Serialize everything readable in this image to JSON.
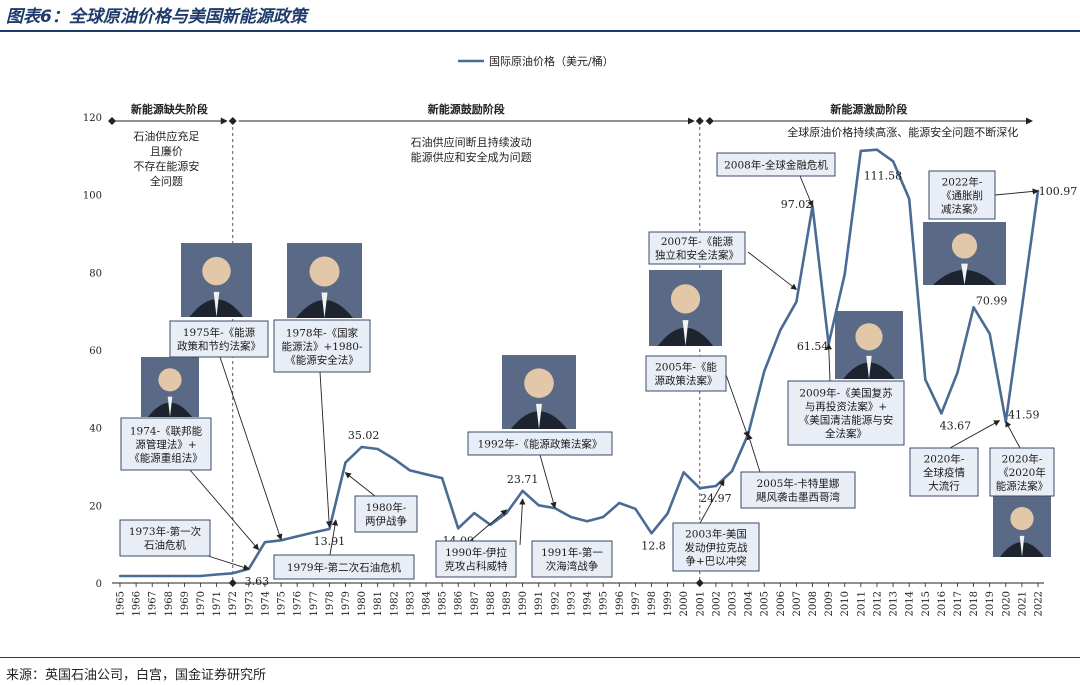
{
  "figure_title": "图表6：全球原油价格与美国新能源政策",
  "source": "来源：英国石油公司，白宫，国金证券研究所",
  "chart_data": {
    "type": "line",
    "series": [
      {
        "name": "国际原油价格（美元/桶）",
        "color": "#4a6b94",
        "x": [
          1965,
          1966,
          1967,
          1968,
          1969,
          1970,
          1971,
          1972,
          1973,
          1974,
          1975,
          1976,
          1977,
          1978,
          1979,
          1980,
          1981,
          1982,
          1983,
          1984,
          1985,
          1986,
          1987,
          1988,
          1989,
          1990,
          1991,
          1992,
          1993,
          1994,
          1995,
          1996,
          1997,
          1998,
          1999,
          2000,
          2001,
          2002,
          2003,
          2004,
          2005,
          2006,
          2007,
          2008,
          2009,
          2010,
          2011,
          2012,
          2013,
          2014,
          2015,
          2016,
          2017,
          2018,
          2019,
          2020,
          2021,
          2022
        ],
        "values": [
          1.8,
          1.8,
          1.8,
          1.8,
          1.8,
          1.8,
          2.2,
          2.5,
          3.63,
          10.5,
          11.0,
          12.0,
          13.0,
          13.91,
          31.0,
          35.02,
          34.5,
          32.0,
          29.0,
          28.0,
          27.0,
          14.09,
          18.0,
          15.0,
          18.0,
          23.71,
          20.0,
          19.3,
          17.0,
          15.9,
          17.0,
          20.6,
          19.1,
          12.8,
          17.9,
          28.5,
          24.4,
          24.97,
          28.8,
          38.3,
          54.5,
          65.1,
          72.4,
          97.02,
          61.54,
          79.5,
          111.26,
          111.58,
          108.6,
          98.9,
          52.4,
          43.67,
          54.2,
          70.99,
          64.2,
          41.59,
          70.9,
          100.97
        ]
      }
    ],
    "xlim": [
      1965,
      2022
    ],
    "ylim": [
      0,
      120
    ],
    "yticks": [
      0,
      20,
      40,
      60,
      80,
      100,
      120
    ],
    "legend": "top-center",
    "grid": false,
    "data_labels": [
      {
        "year": 1973,
        "text": "3.63"
      },
      {
        "year": 1978,
        "text": "13.91"
      },
      {
        "year": 1980,
        "text": "35.02"
      },
      {
        "year": 1986,
        "text": "14.09"
      },
      {
        "year": 1990,
        "text": "23.71"
      },
      {
        "year": 1998,
        "text": "12.8"
      },
      {
        "year": 2002,
        "text": "24.97"
      },
      {
        "year": 2008,
        "text": "97.02"
      },
      {
        "year": 2009,
        "text": "61.54"
      },
      {
        "year": 2012,
        "text": "111.58"
      },
      {
        "year": 2016,
        "text": "43.67"
      },
      {
        "year": 2018,
        "text": "70.99"
      },
      {
        "year": 2020,
        "text": "41.59"
      },
      {
        "year": 2022,
        "text": "100.97"
      }
    ],
    "phases": [
      {
        "label": "新能源缺失阶段",
        "from": 1965,
        "to": 1972,
        "note": [
          "石油供应充足",
          "且廉价",
          "不存在能源安",
          "全问题"
        ]
      },
      {
        "label": "新能源鼓励阶段",
        "from": 1972,
        "to": 2001,
        "note": [
          "石油供应间断且持续波动",
          "能源供应和安全成为问题"
        ]
      },
      {
        "label": "新能源激励阶段",
        "from": 2001,
        "to": 2022,
        "note": [
          "全球原油价格持续高涨、能源安全问题不断深化"
        ]
      }
    ],
    "phase_dividers": [
      1972,
      2001
    ],
    "callouts": [
      {
        "id": "1973",
        "lines": [
          "1973年-第一次",
          "石油危机"
        ],
        "target_year": 1973
      },
      {
        "id": "1974",
        "lines": [
          "1974-《联邦能",
          "源管理法》+",
          "《能源重组法》"
        ],
        "target_year": 1974
      },
      {
        "id": "1975",
        "lines": [
          "1975年-《能源",
          "政策和节约法案》"
        ],
        "target_year": 1975
      },
      {
        "id": "1978",
        "lines": [
          "1978年-《国家",
          "能源法》+1980-",
          "《能源安全法》"
        ],
        "target_year": 1978
      },
      {
        "id": "1979",
        "lines": [
          "1979年-第二次石油危机"
        ],
        "target_year": 1979
      },
      {
        "id": "1980",
        "lines": [
          "1980年-",
          "两伊战争"
        ],
        "target_year": 1980
      },
      {
        "id": "1990",
        "lines": [
          "1990年-伊拉",
          "克攻占科威特"
        ],
        "target_year": 1990
      },
      {
        "id": "1991",
        "lines": [
          "1991年-第一",
          "次海湾战争"
        ],
        "target_year": 1991
      },
      {
        "id": "1992",
        "lines": [
          "1992年-《能源政策法案》"
        ],
        "target_year": 1992
      },
      {
        "id": "2003",
        "lines": [
          "2003年-美国",
          "发动伊拉克战",
          "争+巴以冲突"
        ],
        "target_year": 2003
      },
      {
        "id": "2005",
        "lines": [
          "2005年-《能",
          "源政策法案》"
        ],
        "target_year": 2005
      },
      {
        "id": "2005b",
        "lines": [
          "2005年-卡特里娜",
          "飓风袭击墨西哥湾"
        ],
        "target_year": 2005
      },
      {
        "id": "2007",
        "lines": [
          "2007年-《能源",
          "独立和安全法案》"
        ],
        "target_year": 2007
      },
      {
        "id": "2008",
        "lines": [
          "2008年-全球金融危机"
        ],
        "target_year": 2008
      },
      {
        "id": "2009",
        "lines": [
          "2009年-《美国复苏",
          "与再投资法案》+",
          "《美国清洁能源与安",
          "全法案》"
        ],
        "target_year": 2009
      },
      {
        "id": "2020a",
        "lines": [
          "2020年-",
          "全球疫情",
          "大流行"
        ],
        "target_year": 2020
      },
      {
        "id": "2020b",
        "lines": [
          "2020年-",
          "《2020年",
          "能源法案》"
        ],
        "target_year": 2020
      },
      {
        "id": "2022",
        "lines": [
          "2022年-",
          "《通胀削",
          "减法案》"
        ],
        "target_year": 2022
      }
    ]
  }
}
